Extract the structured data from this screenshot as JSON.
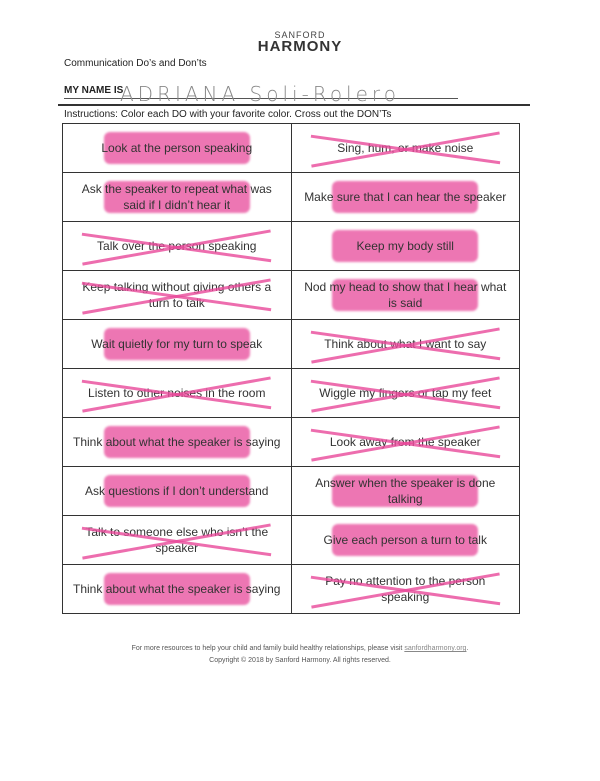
{
  "logo": {
    "top": "SANFORD",
    "bottom": "HARMONY"
  },
  "title": "Communication Do’s and Don’ts",
  "name_label": "MY NAME IS",
  "name_value": "ADRIANA Soli-Rolero",
  "instructions": "Instructions: Color each DO with your favorite color.  Cross out the DON’Ts",
  "highlight_color": "#e8499a",
  "rows": [
    [
      {
        "text": "Look at the person speaking",
        "mark": "colored"
      },
      {
        "text": "Sing, hum, or make noise",
        "mark": "crossed"
      }
    ],
    [
      {
        "text": "Ask the speaker to repeat what was said if I didn’t hear it",
        "mark": "colored"
      },
      {
        "text": "Make sure that I can hear the speaker",
        "mark": "colored"
      }
    ],
    [
      {
        "text": "Talk over the person speaking",
        "mark": "crossed"
      },
      {
        "text": "Keep my body still",
        "mark": "colored"
      }
    ],
    [
      {
        "text": "Keep talking without giving others a turn to talk",
        "mark": "crossed"
      },
      {
        "text": "Nod my head to show that I hear what is said",
        "mark": "colored"
      }
    ],
    [
      {
        "text": "Wait quietly for my turn to speak",
        "mark": "colored"
      },
      {
        "text": "Think about what I want to say",
        "mark": "crossed"
      }
    ],
    [
      {
        "text": "Listen to other noises in the room",
        "mark": "crossed"
      },
      {
        "text": "Wiggle my fingers or tap my feet",
        "mark": "crossed"
      }
    ],
    [
      {
        "text": "Think about what the speaker is saying",
        "mark": "colored"
      },
      {
        "text": "Look away from the speaker",
        "mark": "crossed"
      }
    ],
    [
      {
        "text": "Ask questions if I don’t understand",
        "mark": "colored"
      },
      {
        "text": "Answer when the speaker is done talking",
        "mark": "colored"
      }
    ],
    [
      {
        "text": "Talk to someone else who isn’t the speaker",
        "mark": "crossed"
      },
      {
        "text": "Give each person a turn to talk",
        "mark": "colored"
      }
    ],
    [
      {
        "text": "Think about what the speaker is saying",
        "mark": "colored"
      },
      {
        "text": "Pay no attention to the person speaking",
        "mark": "crossed"
      }
    ]
  ],
  "footer": {
    "line1": "For more resources to help your child and family build healthy relationships, please visit ",
    "link": "sanfordharmony.org",
    "line1_end": ".",
    "line2": "Copyright © 2018 by Sanford Harmony. All rights reserved."
  }
}
